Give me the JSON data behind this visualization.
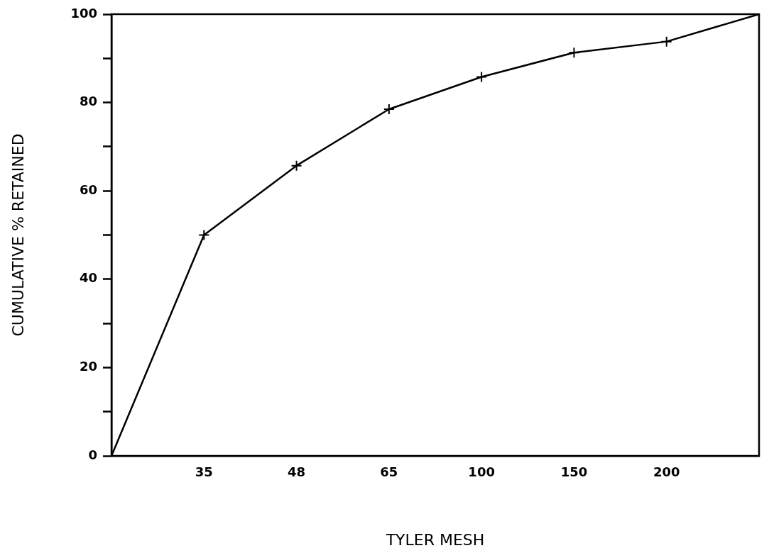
{
  "chart_data": {
    "type": "line",
    "xlabel": "TYLER MESH",
    "ylabel": "CUMULATIVE % RETAINED",
    "categories": [
      null,
      "35",
      "48",
      "65",
      "100",
      "150",
      "200",
      null
    ],
    "ylim": [
      0,
      100
    ],
    "yticks": [
      0,
      {
        "value": 10,
        "label": null
      },
      20,
      {
        "value": 30,
        "label": null
      },
      40,
      {
        "value": 50,
        "label": null
      },
      60,
      {
        "value": 70,
        "label": null
      },
      80,
      {
        "value": 90,
        "label": null
      },
      100
    ],
    "grid": false,
    "legend": false,
    "series": [
      {
        "type": "line",
        "color": "#000000",
        "marker": "none",
        "values": [
          0,
          50,
          65.7,
          78.5,
          85.8,
          91.3,
          93.8,
          100
        ]
      },
      {
        "type": "scatter",
        "color": "#000000",
        "marker": "cross",
        "values": [
          null,
          50,
          65.7,
          78.5,
          85.8,
          91.3,
          93.8,
          null
        ]
      }
    ]
  }
}
